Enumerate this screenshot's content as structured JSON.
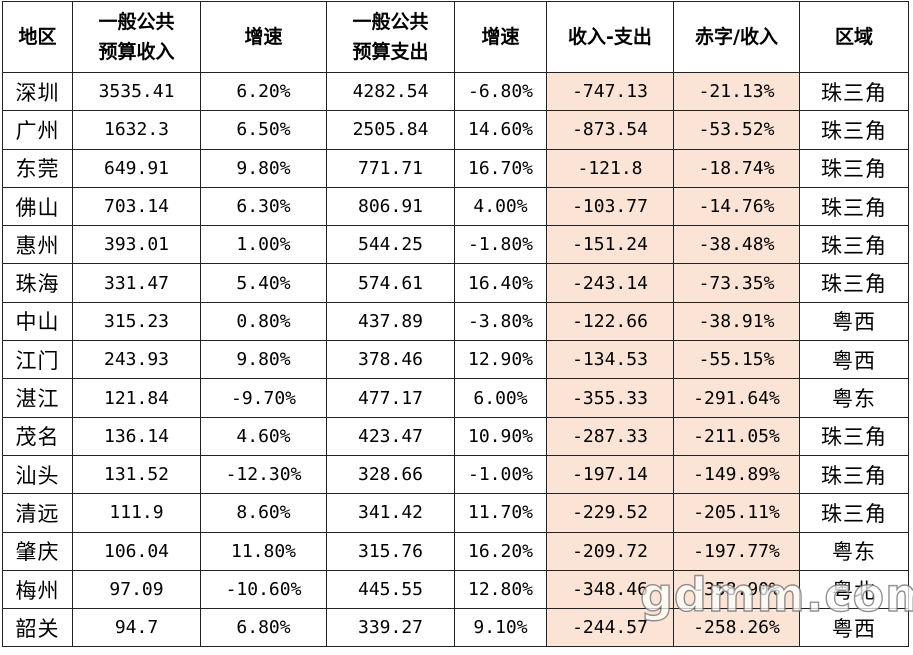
{
  "headers": [
    {
      "line1": "地区",
      "line2": ""
    },
    {
      "line1": "一般公共",
      "line2": "预算收入"
    },
    {
      "line1": "增速",
      "line2": ""
    },
    {
      "line1": "一般公共",
      "line2": "预算支出"
    },
    {
      "line1": "增速",
      "line2": ""
    },
    {
      "line1": "收入-支出",
      "line2": ""
    },
    {
      "line1": "赤字/收入",
      "line2": ""
    },
    {
      "line1": "区域",
      "line2": ""
    }
  ],
  "rows": [
    [
      "深圳",
      "3535.41",
      "6.20%",
      "4282.54",
      "-6.80%",
      "-747.13",
      "-21.13%",
      "珠三角"
    ],
    [
      "广州",
      "1632.3",
      "6.50%",
      "2505.84",
      "14.60%",
      "-873.54",
      "-53.52%",
      "珠三角"
    ],
    [
      "东莞",
      "649.91",
      "9.80%",
      "771.71",
      "16.70%",
      "-121.8",
      "-18.74%",
      "珠三角"
    ],
    [
      "佛山",
      "703.14",
      "6.30%",
      "806.91",
      "4.00%",
      "-103.77",
      "-14.76%",
      "珠三角"
    ],
    [
      "惠州",
      "393.01",
      "1.00%",
      "544.25",
      "-1.80%",
      "-151.24",
      "-38.48%",
      "珠三角"
    ],
    [
      "珠海",
      "331.47",
      "5.40%",
      "574.61",
      "16.40%",
      "-243.14",
      "-73.35%",
      "珠三角"
    ],
    [
      "中山",
      "315.23",
      "0.80%",
      "437.89",
      "-3.80%",
      "-122.66",
      "-38.91%",
      "粤西"
    ],
    [
      "江门",
      "243.93",
      "9.80%",
      "378.46",
      "12.90%",
      "-134.53",
      "-55.15%",
      "粤西"
    ],
    [
      "湛江",
      "121.84",
      "-9.70%",
      "477.17",
      "6.00%",
      "-355.33",
      "-291.64%",
      "粤东"
    ],
    [
      "茂名",
      "136.14",
      "4.60%",
      "423.47",
      "10.90%",
      "-287.33",
      "-211.05%",
      "珠三角"
    ],
    [
      "汕头",
      "131.52",
      "-12.30%",
      "328.66",
      "-1.00%",
      "-197.14",
      "-149.89%",
      "珠三角"
    ],
    [
      "清远",
      "111.9",
      "8.60%",
      "341.42",
      "11.70%",
      "-229.52",
      "-205.11%",
      "珠三角"
    ],
    [
      "肇庆",
      "106.04",
      "11.80%",
      "315.76",
      "16.20%",
      "-209.72",
      "-197.77%",
      "粤东"
    ],
    [
      "梅州",
      "97.09",
      "-10.60%",
      "445.55",
      "12.80%",
      "-348.46",
      "-358.90%",
      "粤北"
    ],
    [
      "韶关",
      "94.7",
      "6.80%",
      "339.27",
      "9.10%",
      "-244.57",
      "-258.26%",
      "粤西"
    ]
  ],
  "colors": {
    "highlight": "#fbe4d5",
    "border": "#222222"
  },
  "watermark": "gdmm.com"
}
